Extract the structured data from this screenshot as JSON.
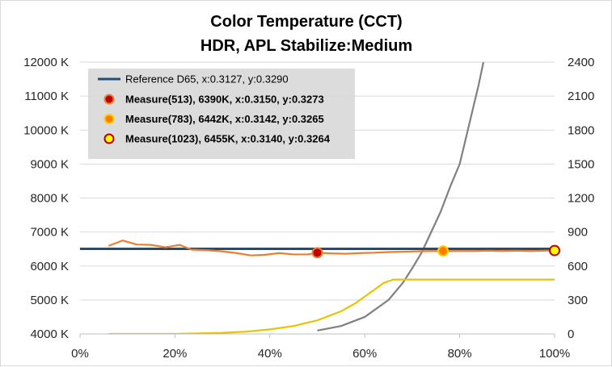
{
  "chart_data": {
    "type": "line",
    "title": "Color Temperature (CCT)",
    "subtitle": "HDR, APL Stabilize:Medium",
    "x_ticks": [
      "0%",
      "20%",
      "40%",
      "60%",
      "80%",
      "100%"
    ],
    "xlim": [
      0,
      100
    ],
    "y_left_ticks": [
      "4000 K",
      "5000 K",
      "6000 K",
      "7000 K",
      "8000 K",
      "9000 K",
      "10000 K",
      "11000 K",
      "12000 K"
    ],
    "ylim_left": [
      4000,
      12000
    ],
    "y_right_ticks": [
      "0",
      "300",
      "600",
      "900",
      "1200",
      "1500",
      "1800",
      "2100",
      "2400"
    ],
    "ylim_right": [
      0,
      2400
    ],
    "grid": "horizontal",
    "legend_position": "top-left",
    "series": [
      {
        "name": "Reference D65, x:0.3127, y:0.3290",
        "axis": "left",
        "color": "#1f4e79",
        "x": [
          0,
          100
        ],
        "y": [
          6504,
          6504
        ]
      },
      {
        "axis": "left",
        "color": "#ed7d31",
        "x": [
          6,
          9,
          12,
          15,
          18,
          21,
          23.5,
          27,
          30,
          33,
          36,
          39,
          42,
          45,
          48,
          50,
          53,
          56,
          59,
          62,
          65,
          68,
          71,
          74,
          76.5,
          80,
          83,
          86,
          89,
          92,
          95,
          98,
          100
        ],
        "y": [
          6590,
          6750,
          6630,
          6620,
          6550,
          6620,
          6480,
          6460,
          6430,
          6380,
          6310,
          6330,
          6380,
          6340,
          6340,
          6390,
          6370,
          6360,
          6380,
          6390,
          6410,
          6420,
          6430,
          6440,
          6440,
          6440,
          6440,
          6450,
          6440,
          6450,
          6440,
          6450,
          6455
        ]
      },
      {
        "axis": "right",
        "color": "#808080",
        "x": [
          50,
          55,
          60,
          65,
          68,
          70,
          72,
          74,
          76,
          78,
          80,
          82,
          84,
          85
        ],
        "y": [
          30,
          70,
          150,
          300,
          450,
          580,
          720,
          900,
          1080,
          1300,
          1500,
          1850,
          2200,
          2400
        ]
      },
      {
        "axis": "right",
        "color": "#e8c400",
        "x": [
          6,
          10,
          20,
          30,
          35,
          40,
          45,
          50,
          55,
          58,
          60,
          62,
          64,
          66,
          68,
          70,
          75,
          80,
          85,
          90,
          95,
          100
        ],
        "y": [
          0,
          0,
          0,
          10,
          20,
          40,
          70,
          120,
          200,
          270,
          330,
          390,
          450,
          480,
          480,
          480,
          480,
          480,
          480,
          480,
          480,
          480
        ]
      }
    ],
    "markers": [
      {
        "label": "Measure(513), 6390K, x:0.3150, y:0.3273",
        "x": 50,
        "y": 6390,
        "fill": "#c00000",
        "stroke": "#ed7d31"
      },
      {
        "label": "Measure(783), 6442K, x:0.3142, y:0.3265",
        "x": 76.5,
        "y": 6442,
        "fill": "#ff7c00",
        "stroke": "#ffd000"
      },
      {
        "label": "Measure(1023), 6455K, x:0.3140, y:0.3264",
        "x": 100,
        "y": 6455,
        "fill": "#ffff00",
        "stroke": "#c00000"
      }
    ]
  }
}
